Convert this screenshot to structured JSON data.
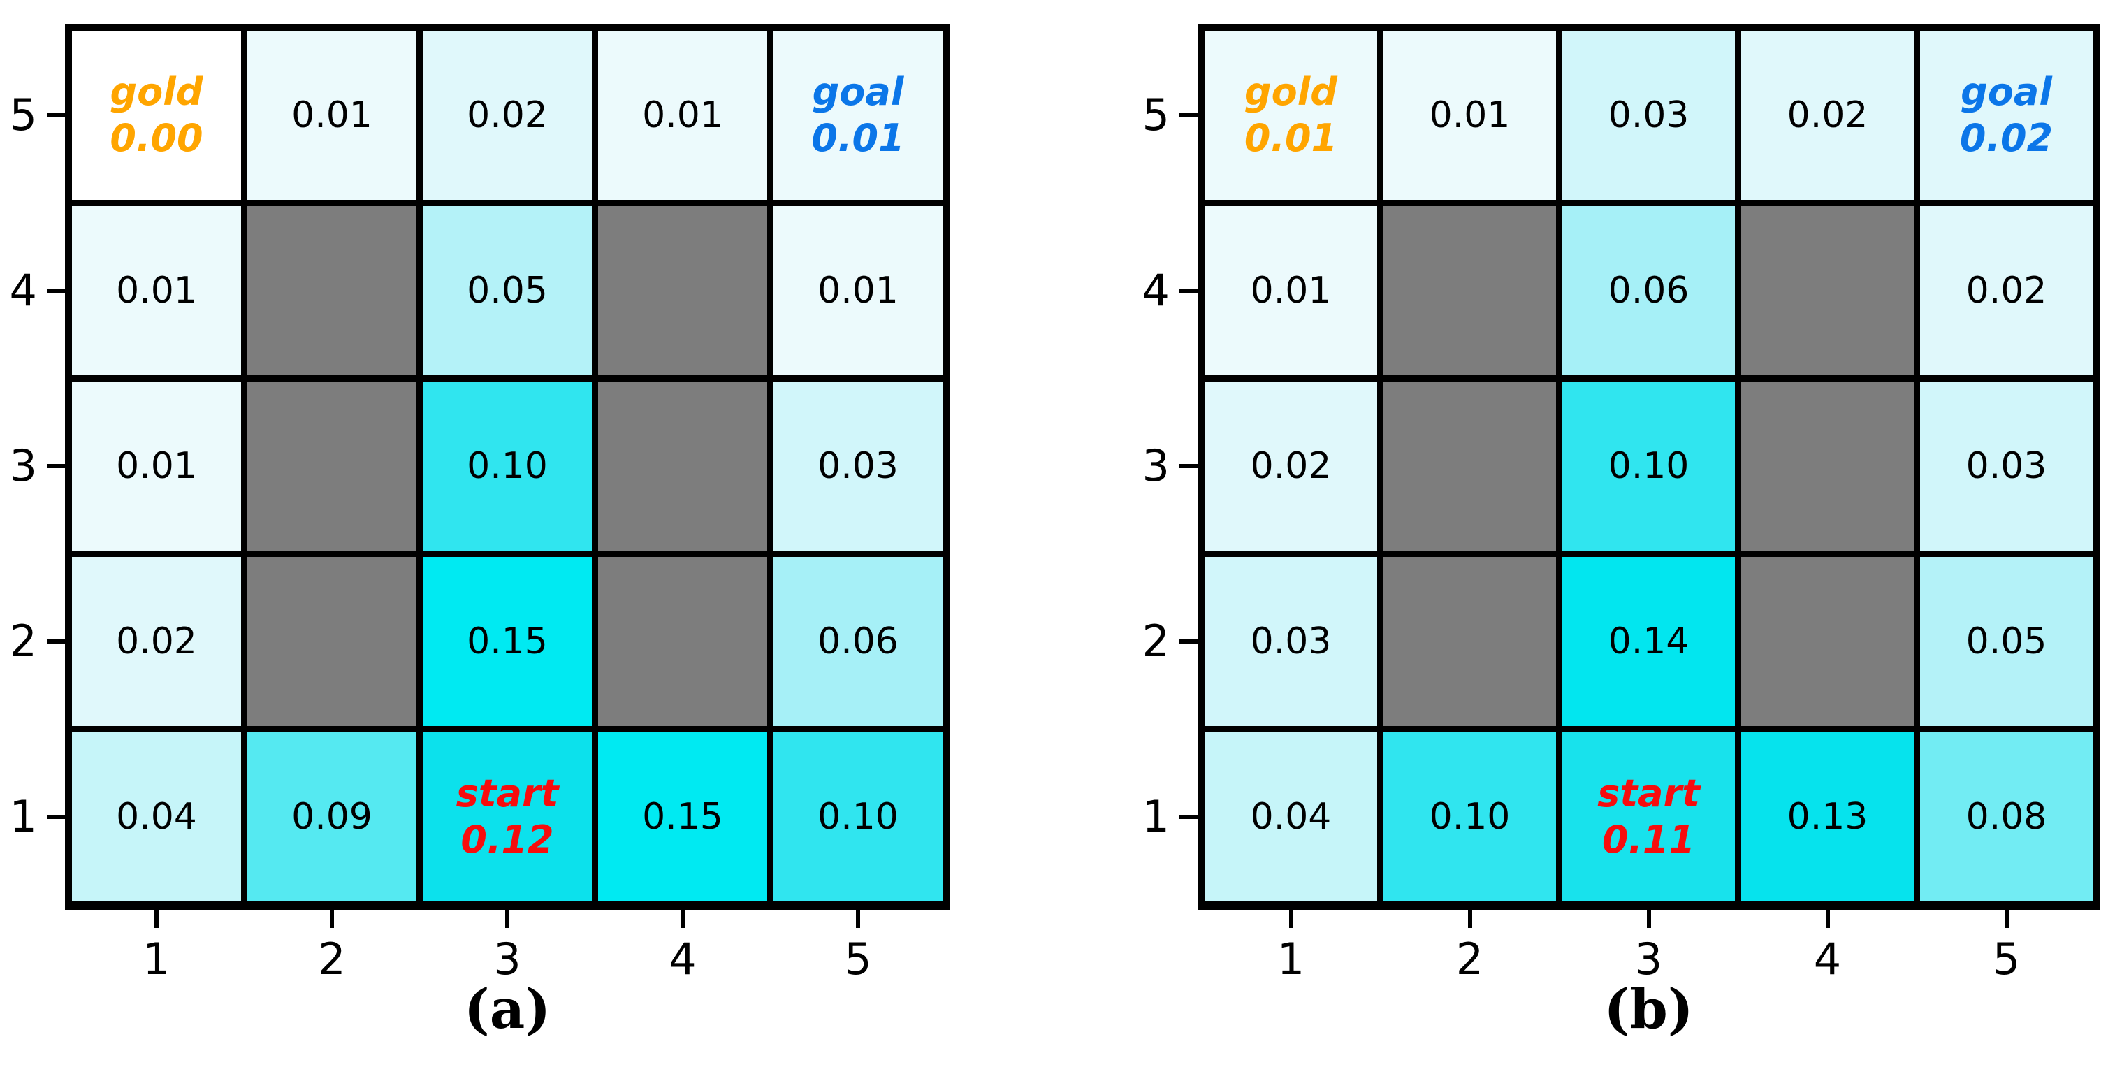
{
  "figure": {
    "background": "#ffffff",
    "colors": {
      "wall": "#7d7d7d",
      "grid_line": "#000000",
      "cell_text": "#000000",
      "axis_text": "#000000",
      "gold_text": "#ffa500",
      "goal_text": "#0b76e8",
      "start_text": "#f70d0d",
      "value_scale": {
        "0.00": "#ffffff",
        "0.01": "#ecfafc",
        "0.02": "#e0f8fb",
        "0.03": "#d1f6fa",
        "0.04": "#c6f5f9",
        "0.05": "#b4f2f8",
        "0.06": "#a6f0f7",
        "0.08": "#72ecf3",
        "0.09": "#55e9f1",
        "0.10": "#30e5ef",
        "0.11": "#18e2ec",
        "0.12": "#0ce1ec",
        "0.13": "#06e3ed",
        "0.14": "#02e6ef",
        "0.15": "#00eaf2"
      }
    },
    "axes": {
      "x_tick_labels": [
        "1",
        "2",
        "3",
        "4",
        "5"
      ],
      "y_tick_labels_top_to_bottom": [
        "5",
        "4",
        "3",
        "2",
        "1"
      ]
    },
    "panels": [
      {
        "caption": "(a)",
        "rows_top_to_bottom": [
          [
            {
              "role": "gold",
              "label": "gold",
              "value": "0.00"
            },
            {
              "value": "0.01"
            },
            {
              "value": "0.02"
            },
            {
              "value": "0.01"
            },
            {
              "role": "goal",
              "label": "goal",
              "value": "0.01"
            }
          ],
          [
            {
              "value": "0.01"
            },
            {
              "wall": true
            },
            {
              "value": "0.05"
            },
            {
              "wall": true
            },
            {
              "value": "0.01"
            }
          ],
          [
            {
              "value": "0.01"
            },
            {
              "wall": true
            },
            {
              "value": "0.10"
            },
            {
              "wall": true
            },
            {
              "value": "0.03"
            }
          ],
          [
            {
              "value": "0.02"
            },
            {
              "wall": true
            },
            {
              "value": "0.15"
            },
            {
              "wall": true
            },
            {
              "value": "0.06"
            }
          ],
          [
            {
              "value": "0.04"
            },
            {
              "value": "0.09"
            },
            {
              "role": "start",
              "label": "start",
              "value": "0.12"
            },
            {
              "value": "0.15"
            },
            {
              "value": "0.10"
            }
          ]
        ]
      },
      {
        "caption": "(b)",
        "rows_top_to_bottom": [
          [
            {
              "role": "gold",
              "label": "gold",
              "value": "0.01"
            },
            {
              "value": "0.01"
            },
            {
              "value": "0.03"
            },
            {
              "value": "0.02"
            },
            {
              "role": "goal",
              "label": "goal",
              "value": "0.02"
            }
          ],
          [
            {
              "value": "0.01"
            },
            {
              "wall": true
            },
            {
              "value": "0.06"
            },
            {
              "wall": true
            },
            {
              "value": "0.02"
            }
          ],
          [
            {
              "value": "0.02"
            },
            {
              "wall": true
            },
            {
              "value": "0.10"
            },
            {
              "wall": true
            },
            {
              "value": "0.03"
            }
          ],
          [
            {
              "value": "0.03"
            },
            {
              "wall": true
            },
            {
              "value": "0.14"
            },
            {
              "wall": true
            },
            {
              "value": "0.05"
            }
          ],
          [
            {
              "value": "0.04"
            },
            {
              "value": "0.10"
            },
            {
              "role": "start",
              "label": "start",
              "value": "0.11"
            },
            {
              "value": "0.13"
            },
            {
              "value": "0.08"
            }
          ]
        ]
      }
    ]
  },
  "chart_data": [
    {
      "type": "heatmap",
      "title": "(a)",
      "xlabel": "",
      "ylabel": "",
      "x_ticks": [
        1,
        2,
        3,
        4,
        5
      ],
      "y_ticks": [
        1,
        2,
        3,
        4,
        5
      ],
      "grid_rows_order": "y=5 (top) to y=1 (bottom)",
      "matrix": [
        [
          0.0,
          0.01,
          0.02,
          0.01,
          0.01
        ],
        [
          0.01,
          null,
          0.05,
          null,
          0.01
        ],
        [
          0.01,
          null,
          0.1,
          null,
          0.03
        ],
        [
          0.02,
          null,
          0.15,
          null,
          0.06
        ],
        [
          0.04,
          0.09,
          0.12,
          0.15,
          0.1
        ]
      ],
      "walls_xy": [
        [
          2,
          4
        ],
        [
          4,
          4
        ],
        [
          2,
          3
        ],
        [
          4,
          3
        ],
        [
          2,
          2
        ],
        [
          4,
          2
        ]
      ],
      "annotations": [
        {
          "label": "gold",
          "x": 1,
          "y": 5,
          "value": 0.0
        },
        {
          "label": "goal",
          "x": 5,
          "y": 5,
          "value": 0.01
        },
        {
          "label": "start",
          "x": 3,
          "y": 1,
          "value": 0.12
        }
      ],
      "colormap": "white-to-cyan, walls gray",
      "legend": "none",
      "grid_lines": "thick black cell borders"
    },
    {
      "type": "heatmap",
      "title": "(b)",
      "xlabel": "",
      "ylabel": "",
      "x_ticks": [
        1,
        2,
        3,
        4,
        5
      ],
      "y_ticks": [
        1,
        2,
        3,
        4,
        5
      ],
      "grid_rows_order": "y=5 (top) to y=1 (bottom)",
      "matrix": [
        [
          0.01,
          0.01,
          0.03,
          0.02,
          0.02
        ],
        [
          0.01,
          null,
          0.06,
          null,
          0.02
        ],
        [
          0.02,
          null,
          0.1,
          null,
          0.03
        ],
        [
          0.03,
          null,
          0.14,
          null,
          0.05
        ],
        [
          0.04,
          0.1,
          0.11,
          0.13,
          0.08
        ]
      ],
      "walls_xy": [
        [
          2,
          4
        ],
        [
          4,
          4
        ],
        [
          2,
          3
        ],
        [
          4,
          3
        ],
        [
          2,
          2
        ],
        [
          4,
          2
        ]
      ],
      "annotations": [
        {
          "label": "gold",
          "x": 1,
          "y": 5,
          "value": 0.01
        },
        {
          "label": "goal",
          "x": 5,
          "y": 5,
          "value": 0.02
        },
        {
          "label": "start",
          "x": 3,
          "y": 1,
          "value": 0.11
        }
      ],
      "colormap": "white-to-cyan, walls gray",
      "legend": "none",
      "grid_lines": "thick black cell borders"
    }
  ]
}
